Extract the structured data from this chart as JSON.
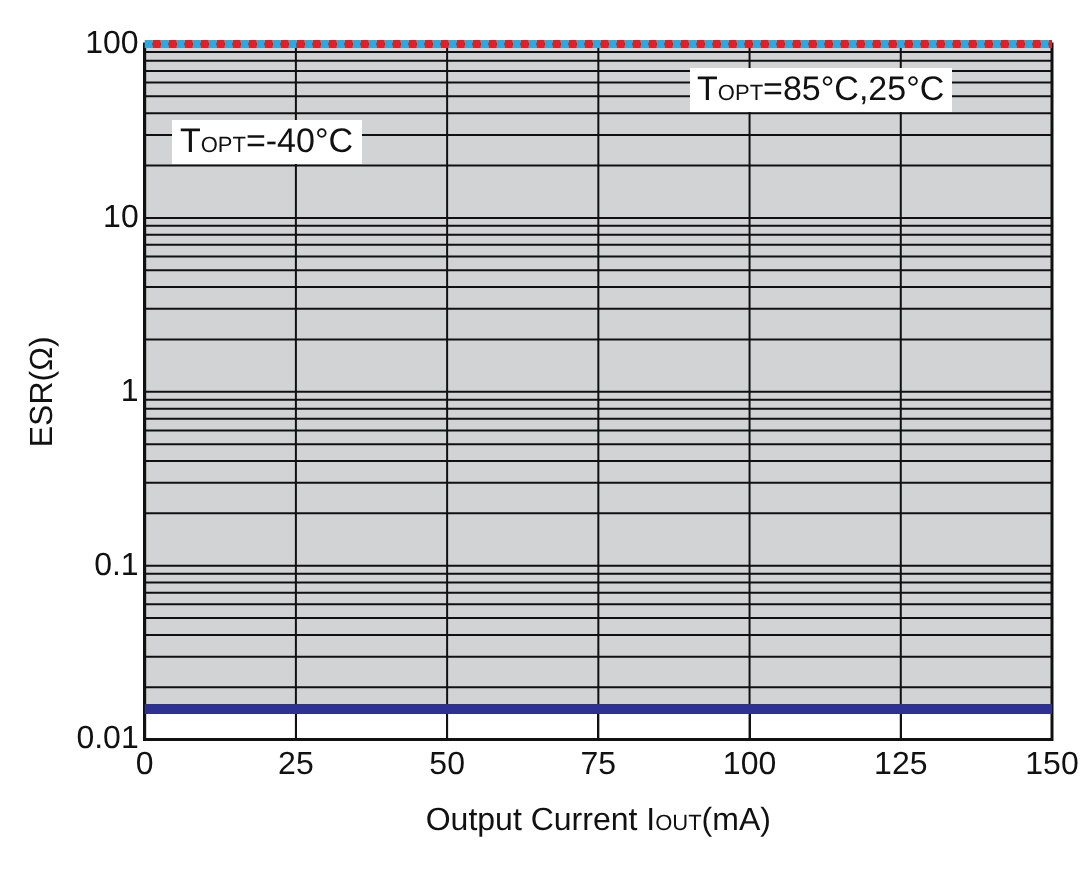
{
  "chart_data": {
    "type": "line",
    "xlabel": "Output Current I$_{OUT}$(mA)",
    "ylabel": "ESR(Ω)",
    "x": [
      0,
      150
    ],
    "series": [
      {
        "color": "#2e3192",
        "values": [
          0.015,
          0.015
        ],
        "line_style": "solid"
      },
      {
        "color": "#e31e24",
        "values": [
          100,
          100
        ],
        "line_style": "dotted"
      },
      {
        "color": "#29abe2",
        "values": [
          100,
          100
        ],
        "line_style": "dotted"
      }
    ],
    "bands": [
      {
        "axis": "y",
        "from": 0.015,
        "to": 100,
        "color": "#d1d3d4"
      }
    ],
    "annotations": [
      "T$_{OPT}$=-40°C",
      "T$_{OPT}$=85°C,25°C"
    ],
    "xlim": [
      0,
      150
    ],
    "xticks": [
      0,
      25,
      50,
      75,
      100,
      125,
      150
    ],
    "ylim": [
      0.01,
      100
    ],
    "yticks": [
      0.01,
      {
        "value": 0.02,
        "label": null
      },
      {
        "value": 0.03,
        "label": null
      },
      {
        "value": 0.04,
        "label": null
      },
      {
        "value": 0.05,
        "label": null
      },
      {
        "value": 0.06,
        "label": null
      },
      {
        "value": 0.07,
        "label": null
      },
      {
        "value": 0.08,
        "label": null
      },
      {
        "value": 0.09,
        "label": null
      },
      0.1,
      {
        "value": 0.2,
        "label": null
      },
      {
        "value": 0.3,
        "label": null
      },
      {
        "value": 0.4,
        "label": null
      },
      {
        "value": 0.5,
        "label": null
      },
      {
        "value": 0.6,
        "label": null
      },
      {
        "value": 0.7,
        "label": null
      },
      {
        "value": 0.8,
        "label": null
      },
      {
        "value": 0.9,
        "label": null
      },
      1,
      {
        "value": 2,
        "label": null
      },
      {
        "value": 3,
        "label": null
      },
      {
        "value": 4,
        "label": null
      },
      {
        "value": 5,
        "label": null
      },
      {
        "value": 6,
        "label": null
      },
      {
        "value": 7,
        "label": null
      },
      {
        "value": 8,
        "label": null
      },
      {
        "value": 9,
        "label": null
      },
      10,
      {
        "value": 20,
        "label": null
      },
      {
        "value": 30,
        "label": null
      },
      {
        "value": 40,
        "label": null
      },
      {
        "value": 50,
        "label": null
      },
      {
        "value": 60,
        "label": null
      },
      {
        "value": 70,
        "label": null
      },
      {
        "value": 80,
        "label": null
      },
      {
        "value": 90,
        "label": null
      },
      100
    ],
    "log": "y",
    "grid": true,
    "legend": false,
    "marker": "none"
  }
}
